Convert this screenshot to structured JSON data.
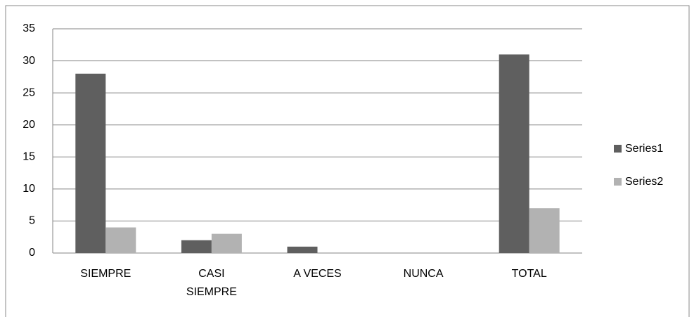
{
  "chart_data": {
    "type": "bar",
    "categories": [
      "SIEMPRE",
      "CASI SIEMPRE",
      "A VECES",
      "NUNCA",
      "TOTAL"
    ],
    "series": [
      {
        "name": "Series1",
        "color": "#5f5f5f",
        "values": [
          28,
          2,
          1,
          0,
          31
        ]
      },
      {
        "name": "Series2",
        "color": "#b2b2b2",
        "values": [
          4,
          3,
          0,
          0,
          7
        ]
      }
    ],
    "ylim": [
      0,
      35
    ],
    "yticks": [
      0,
      5,
      10,
      15,
      20,
      25,
      30,
      35
    ],
    "grid": true,
    "legend": "right"
  }
}
